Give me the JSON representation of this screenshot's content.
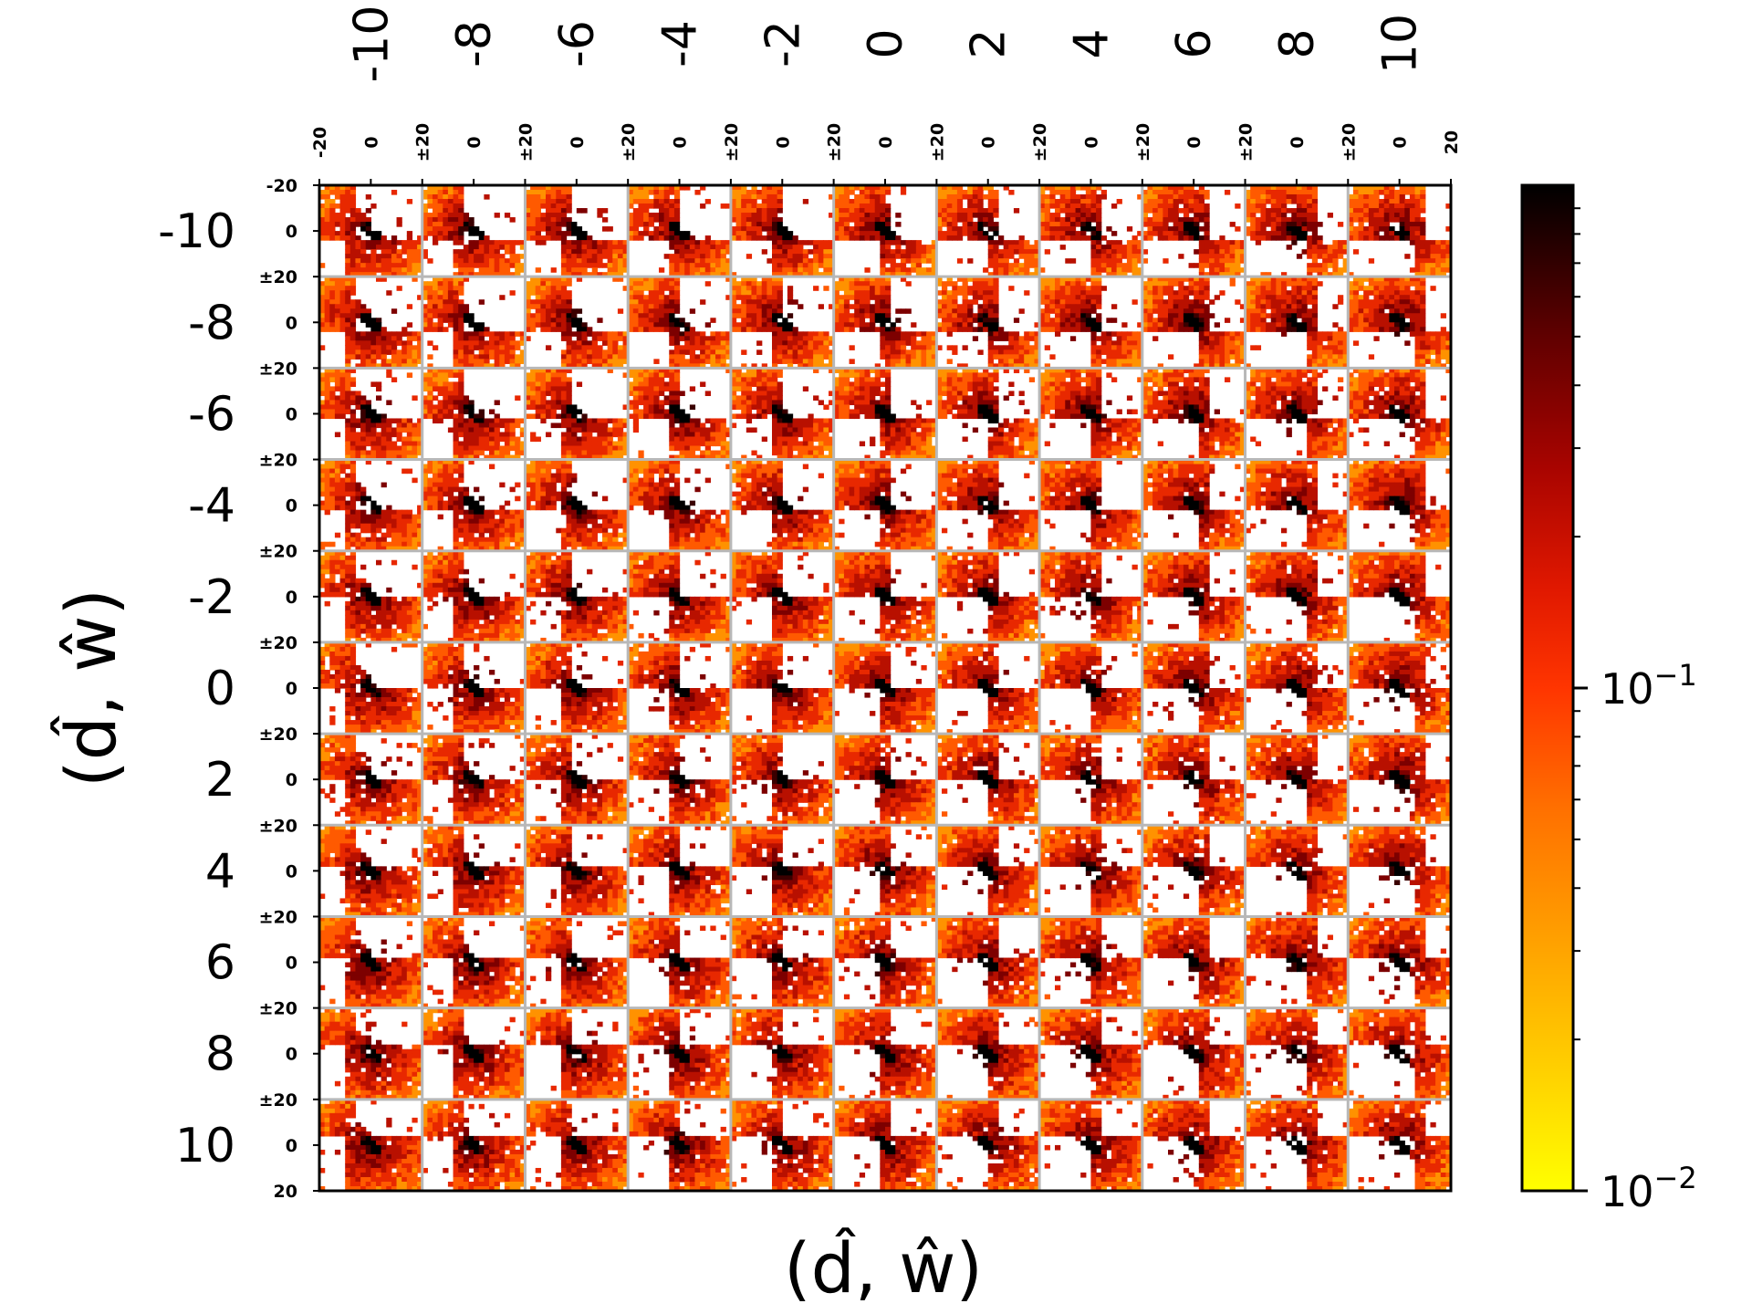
{
  "chart_data": {
    "type": "heatmap",
    "title": "",
    "xlabel": "(d̂, ŵ)",
    "ylabel": "(d̂, ŵ)",
    "outer_x_ticks": [
      "-10",
      "-8",
      "-6",
      "-4",
      "-2",
      "0",
      "2",
      "4",
      "6",
      "8",
      "10"
    ],
    "outer_y_ticks": [
      "-10",
      "-8",
      "-6",
      "-4",
      "-2",
      "0",
      "2",
      "4",
      "6",
      "8",
      "10"
    ],
    "inner_x_ticks": [
      "-20",
      "0",
      "±20",
      "0",
      "±20",
      "0",
      "±20",
      "0",
      "±20",
      "0",
      "±20",
      "0",
      "±20",
      "0",
      "±20",
      "0",
      "±20",
      "0",
      "±20",
      "0",
      "±20",
      "0",
      "20"
    ],
    "inner_y_ticks": [
      "-20",
      "0",
      "±20",
      "0",
      "±20",
      "0",
      "±20",
      "0",
      "±20",
      "0",
      "±20",
      "0",
      "±20",
      "0",
      "±20",
      "0",
      "±20",
      "0",
      "±20",
      "0",
      "±20",
      "0",
      "20"
    ],
    "grid_rows": 11,
    "grid_cols": 11,
    "inner_range": [
      -20,
      20
    ],
    "colorbar": {
      "scale": "log",
      "range": [
        0.01,
        1
      ],
      "major_labels": [
        {
          "value": 0.1,
          "base": "10",
          "exp": "−1"
        },
        {
          "value": 0.01,
          "base": "10",
          "exp": "−2"
        }
      ],
      "colormap": "hot_r",
      "colors": [
        "#ffff00",
        "#ffc400",
        "#ff9200",
        "#ff5a00",
        "#e82800",
        "#b81000",
        "#7d0000",
        "#3a0000",
        "#000000"
      ]
    },
    "panel_pattern": "anti-diagonal band with two quadrant blocks (top-left and bottom-right) joined at the center; blocks shift with panel position"
  }
}
